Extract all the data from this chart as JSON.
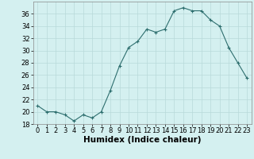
{
  "xlabel": "Humidex (Indice chaleur)",
  "x": [
    0,
    1,
    2,
    3,
    4,
    5,
    6,
    7,
    8,
    9,
    10,
    11,
    12,
    13,
    14,
    15,
    16,
    17,
    18,
    19,
    20,
    21,
    22,
    23
  ],
  "y": [
    21,
    20,
    20,
    19.5,
    18.5,
    19.5,
    19,
    20,
    23.5,
    27.5,
    30.5,
    31.5,
    33.5,
    33,
    33.5,
    36.5,
    37,
    36.5,
    36.5,
    35,
    34,
    30.5,
    28,
    25.5
  ],
  "ylim": [
    18,
    38
  ],
  "yticks": [
    18,
    20,
    22,
    24,
    26,
    28,
    30,
    32,
    34,
    36
  ],
  "xticks": [
    0,
    1,
    2,
    3,
    4,
    5,
    6,
    7,
    8,
    9,
    10,
    11,
    12,
    13,
    14,
    15,
    16,
    17,
    18,
    19,
    20,
    21,
    22,
    23
  ],
  "line_color": "#2d6e6e",
  "marker": "+",
  "marker_size": 3,
  "marker_edge_width": 0.8,
  "line_width": 0.8,
  "bg_color": "#d4f0f0",
  "grid_color": "#b8dada",
  "xlabel_fontsize": 7.5,
  "tick_fontsize": 6,
  "fig_width": 3.2,
  "fig_height": 2.0,
  "dpi": 100
}
